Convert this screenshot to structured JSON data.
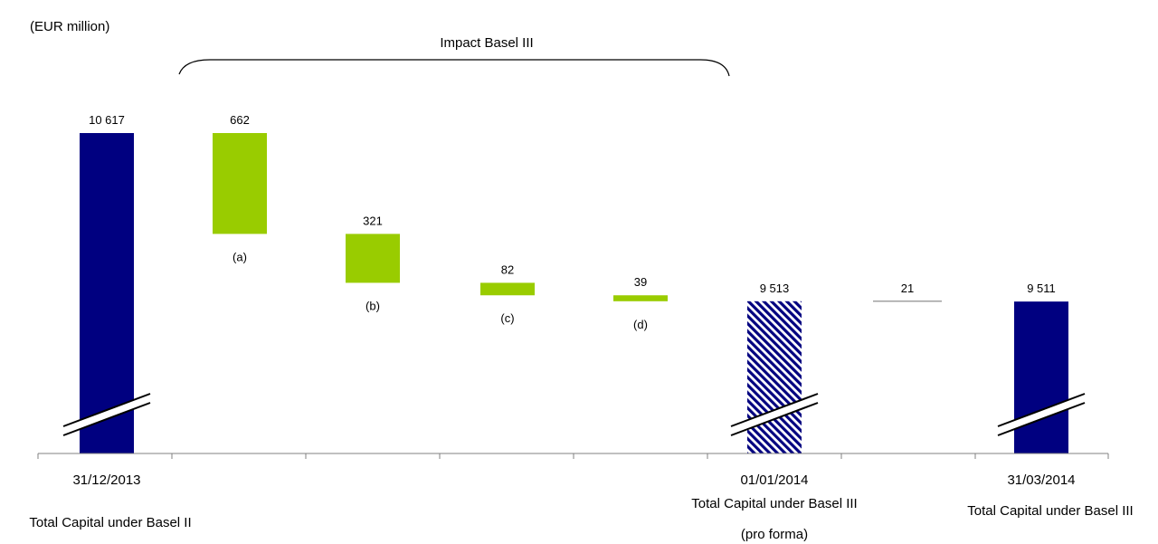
{
  "unit_label": "(EUR million)",
  "bracket_label": "Impact Basel III",
  "chart_data": {
    "type": "bar",
    "subtype": "waterfall",
    "ylabel": "(EUR million)",
    "categories": [
      "31/12/2013",
      "(a)",
      "(b)",
      "(c)",
      "(d)",
      "01/01/2014",
      "",
      "31/03/2014"
    ],
    "bars": [
      {
        "x_label": "31/12/2013",
        "value_label": "10 617",
        "value": 10617,
        "kind": "total",
        "pattern": "solid",
        "axis_break": true
      },
      {
        "x_label": "(a)",
        "value_label": "662",
        "value": -662,
        "kind": "delta",
        "start": 10617,
        "end": 9955
      },
      {
        "x_label": "(b)",
        "value_label": "321",
        "value": -321,
        "kind": "delta",
        "start": 9955,
        "end": 9634
      },
      {
        "x_label": "(c)",
        "value_label": "82",
        "value": -82,
        "kind": "delta",
        "start": 9634,
        "end": 9552
      },
      {
        "x_label": "(d)",
        "value_label": "39",
        "value": -39,
        "kind": "delta",
        "start": 9552,
        "end": 9513
      },
      {
        "x_label": "01/01/2014",
        "value_label": "9 513",
        "value": 9513,
        "kind": "total",
        "pattern": "hatched",
        "axis_break": true
      },
      {
        "x_label": "",
        "value_label": "21",
        "value": 21,
        "kind": "line",
        "level": 9513
      },
      {
        "x_label": "31/03/2014",
        "value_label": "9 511",
        "value": 9511,
        "kind": "total",
        "pattern": "solid",
        "axis_break": true
      }
    ],
    "bottom_labels": [
      {
        "lines": [
          "Total Capital under Basel II"
        ]
      },
      {
        "lines": [
          "Total Capital under Basel III",
          "(pro forma)"
        ]
      },
      {
        "lines": [
          "Total Capital under Basel III"
        ]
      }
    ],
    "colors": {
      "total": "#000080",
      "delta": "#99cc00",
      "axis": "#808080",
      "line": "#808080"
    }
  }
}
